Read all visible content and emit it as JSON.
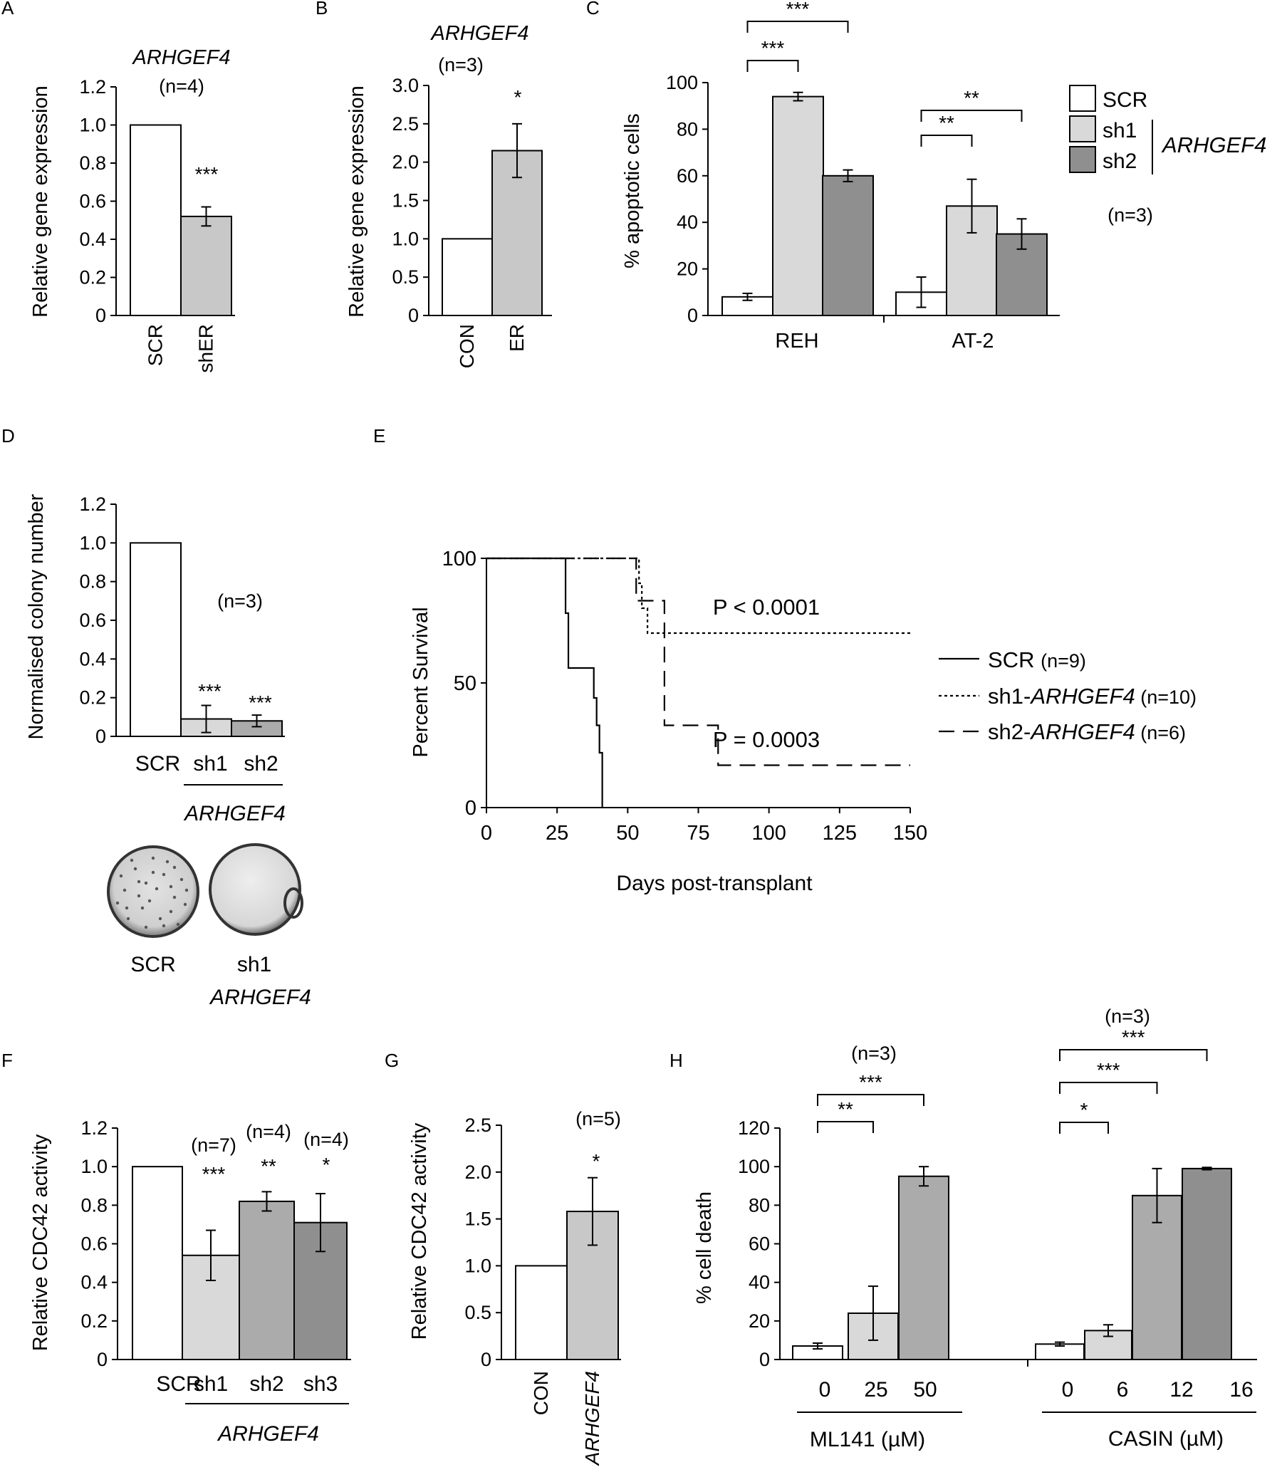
{
  "colors": {
    "white": "#ffffff",
    "light": "#d9d9d9",
    "lightA": "#c8c8c8",
    "mid": "#ababab",
    "dark": "#8f8f8f",
    "stroke": "#000000"
  },
  "chart_data": [
    {
      "id": "A",
      "panel_letter": "A",
      "type": "bar",
      "title": "ARHGEF4",
      "n_label": "(n=4)",
      "ylabel": "Relative gene expression",
      "ylim": [
        0,
        1.2
      ],
      "yticks": [
        "0",
        "0.2",
        "0.4",
        "0.6",
        "0.8",
        "1.0",
        "1.2"
      ],
      "categories": [
        "SCR",
        "shER"
      ],
      "values": [
        1.0,
        0.52
      ],
      "errors": [
        0,
        0.05
      ],
      "sig": [
        "",
        "***"
      ],
      "colors": [
        "white",
        "lightA"
      ]
    },
    {
      "id": "B",
      "panel_letter": "B",
      "type": "bar",
      "title": "ARHGEF4",
      "n_label": "(n=3)",
      "ylabel": "Relative gene expression",
      "ylim": [
        0,
        3.0
      ],
      "yticks": [
        "0",
        "0.5",
        "1.0",
        "1.5",
        "2.0",
        "2.5",
        "3.0"
      ],
      "categories": [
        "CON",
        "ER"
      ],
      "values": [
        1.0,
        2.15
      ],
      "errors": [
        0,
        0.35
      ],
      "sig": [
        "",
        "*"
      ],
      "colors": [
        "white",
        "lightA"
      ]
    },
    {
      "id": "C",
      "panel_letter": "C",
      "type": "bar",
      "ylabel": "% apoptotic cells",
      "ylim": [
        0,
        100
      ],
      "yticks": [
        "0",
        "20",
        "40",
        "60",
        "80",
        "100"
      ],
      "groups": [
        "REH",
        "AT-2"
      ],
      "series": [
        {
          "name": "SCR",
          "values": [
            8,
            10
          ],
          "errors": [
            1.5,
            6.5
          ]
        },
        {
          "name": "sh1",
          "values": [
            94,
            47
          ],
          "errors": [
            1.8,
            11.5
          ]
        },
        {
          "name": "sh2",
          "values": [
            60,
            35
          ],
          "errors": [
            2.5,
            6.5
          ]
        }
      ],
      "brackets": [
        {
          "group": 0,
          "from": 0,
          "to": 2,
          "label": "***",
          "level": 2
        },
        {
          "group": 0,
          "from": 0,
          "to": 1,
          "label": "***",
          "level": 1
        },
        {
          "group": 1,
          "from": 0,
          "to": 2,
          "label": "**",
          "level": 2
        },
        {
          "group": 1,
          "from": 0,
          "to": 1,
          "label": "**",
          "level": 1
        }
      ],
      "legend": {
        "items": [
          "SCR",
          "sh1",
          "sh2"
        ],
        "gene": "ARHGEF4",
        "n_label": "(n=3)"
      },
      "colors": [
        "white",
        "light",
        "dark"
      ]
    },
    {
      "id": "D",
      "panel_letter": "D",
      "type": "bar",
      "ylabel": "Normalised colony number",
      "ylim": [
        0,
        1.2
      ],
      "yticks": [
        "0",
        "0.2",
        "0.4",
        "0.6",
        "0.8",
        "1.0",
        "1.2"
      ],
      "categories": [
        "SCR",
        "sh1",
        "sh2"
      ],
      "values": [
        1.0,
        0.09,
        0.08
      ],
      "errors": [
        0,
        0.07,
        0.03
      ],
      "sig": [
        "",
        "***",
        "***"
      ],
      "n_label": "(n=3)",
      "group_label": "ARHGEF4",
      "colors": [
        "white",
        "light",
        "mid"
      ],
      "plate_labels": [
        "SCR",
        "sh1",
        "ARHGEF4"
      ]
    },
    {
      "id": "E",
      "panel_letter": "E",
      "type": "line",
      "ylabel": "Percent Survival",
      "xlabel": "Days post-transplant",
      "xlim": [
        0,
        150
      ],
      "ylim": [
        0,
        100
      ],
      "xticks": [
        "0",
        "25",
        "50",
        "75",
        "100",
        "125",
        "150"
      ],
      "yticks": [
        "0",
        "50",
        "100"
      ],
      "series": [
        {
          "name": "SCR",
          "n": "(n=9)",
          "style": "solid",
          "steps": [
            [
              0,
              100
            ],
            [
              28,
              100
            ],
            [
              28,
              78
            ],
            [
              29,
              78
            ],
            [
              29,
              56
            ],
            [
              38,
              56
            ],
            [
              38,
              44
            ],
            [
              39,
              44
            ],
            [
              39,
              33
            ],
            [
              40,
              33
            ],
            [
              40,
              22
            ],
            [
              41,
              22
            ],
            [
              41,
              0
            ]
          ]
        },
        {
          "name": "sh1-ARHGEF4",
          "n": "(n=10)",
          "style": "dotted",
          "steps": [
            [
              0,
              100
            ],
            [
              54,
              100
            ],
            [
              54,
              90
            ],
            [
              55,
              90
            ],
            [
              55,
              80
            ],
            [
              57,
              80
            ],
            [
              57,
              70
            ],
            [
              150,
              70
            ]
          ]
        },
        {
          "name": "sh2-ARHGEF4",
          "n": "(n=6)",
          "style": "dashed",
          "steps": [
            [
              0,
              100
            ],
            [
              53,
              100
            ],
            [
              53,
              83
            ],
            [
              63,
              83
            ],
            [
              63,
              33
            ],
            [
              82,
              33
            ],
            [
              82,
              17
            ],
            [
              150,
              17
            ]
          ]
        }
      ],
      "annotations": [
        "P < 0.0001",
        "P = 0.0003"
      ]
    },
    {
      "id": "F",
      "panel_letter": "F",
      "type": "bar",
      "ylabel": "Relative CDC42 activity",
      "ylim": [
        0,
        1.2
      ],
      "yticks": [
        "0",
        "0.2",
        "0.4",
        "0.6",
        "0.8",
        "1.0",
        "1.2"
      ],
      "categories": [
        "SCR",
        "sh1",
        "sh2",
        "sh3"
      ],
      "values": [
        1.0,
        0.54,
        0.82,
        0.71
      ],
      "errors": [
        0,
        0.13,
        0.05,
        0.15
      ],
      "sig": [
        "",
        "***",
        "**",
        "*"
      ],
      "n_labels": [
        "",
        "(n=7)",
        "(n=4)",
        "(n=4)"
      ],
      "group_label": "ARHGEF4",
      "colors": [
        "white",
        "light",
        "mid",
        "dark"
      ]
    },
    {
      "id": "G",
      "panel_letter": "G",
      "type": "bar",
      "ylabel": "Relative CDC42 activity",
      "ylim": [
        0,
        2.5
      ],
      "yticks": [
        "0",
        "0.5",
        "1.0",
        "1.5",
        "2.0",
        "2.5"
      ],
      "categories": [
        "CON",
        "ARHGEF4"
      ],
      "values": [
        1.0,
        1.58
      ],
      "errors": [
        0,
        0.36
      ],
      "sig": [
        "",
        "*"
      ],
      "n_label": "(n=5)",
      "colors": [
        "white",
        "lightA"
      ]
    },
    {
      "id": "H",
      "panel_letter": "H",
      "type": "bar",
      "ylabel": "% cell death",
      "ylim": [
        0,
        120
      ],
      "yticks": [
        "0",
        "20",
        "40",
        "60",
        "80",
        "100",
        "120"
      ],
      "groups": [
        {
          "label": "ML141 (µM)",
          "n_label": "(n=3)",
          "categories": [
            "0",
            "25",
            "50"
          ],
          "values": [
            7,
            24,
            95
          ],
          "errors": [
            1.5,
            14,
            5
          ],
          "colors": [
            "white",
            "light",
            "mid"
          ],
          "brackets": [
            {
              "from": 0,
              "to": 2,
              "label": "***",
              "level": 2
            },
            {
              "from": 0,
              "to": 1,
              "label": "**",
              "level": 1
            }
          ]
        },
        {
          "label": "CASIN (µM)",
          "n_label": "(n=3)",
          "categories": [
            "0",
            "6",
            "12",
            "16"
          ],
          "values": [
            8,
            15,
            85,
            99
          ],
          "errors": [
            1,
            3,
            14,
            0.6
          ],
          "colors": [
            "white",
            "light",
            "mid",
            "dark"
          ],
          "brackets": [
            {
              "from": 0,
              "to": 3,
              "label": "***",
              "level": 3
            },
            {
              "from": 0,
              "to": 2,
              "label": "***",
              "level": 2
            },
            {
              "from": 0,
              "to": 1,
              "label": "*",
              "level": 1
            }
          ]
        }
      ]
    }
  ]
}
